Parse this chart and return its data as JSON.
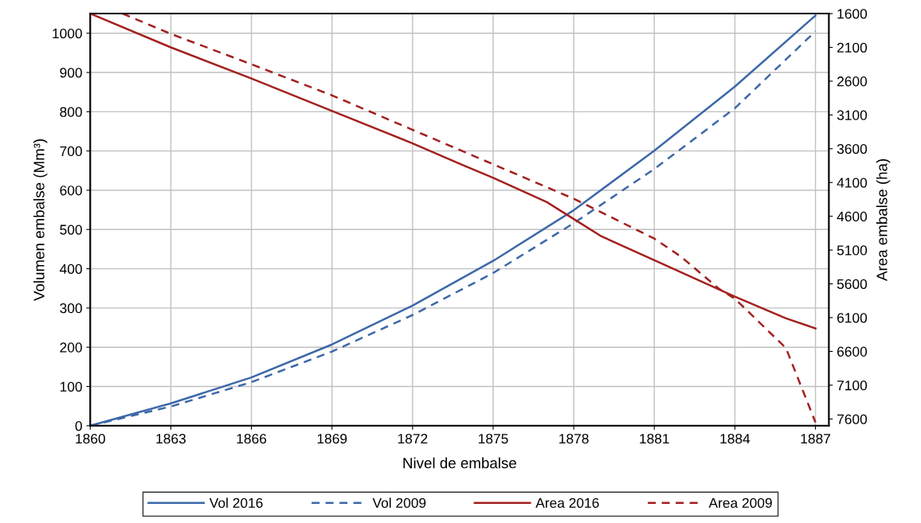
{
  "chart_data": {
    "type": "line",
    "xlabel": "Nivel de embalse",
    "ylabel": "Volumen embalse (Mm³)",
    "y2label": "Area embalse (ha)",
    "xlim": [
      1860,
      1887.5
    ],
    "xticks": [
      1860,
      1863,
      1866,
      1869,
      1872,
      1875,
      1878,
      1881,
      1884,
      1887
    ],
    "ylim": [
      0,
      1050
    ],
    "yticks": [
      0,
      100,
      200,
      300,
      400,
      500,
      600,
      700,
      800,
      900,
      1000
    ],
    "y2lim": [
      7700,
      1600
    ],
    "y2ticks": [
      1600,
      2100,
      2600,
      3100,
      3600,
      4100,
      4600,
      5100,
      5600,
      6100,
      6600,
      7100,
      7600
    ],
    "grid": true,
    "legend": "bottom",
    "series": [
      {
        "name": "Vol 2016",
        "color": "#3d68a8",
        "line_style": "solid",
        "x": [
          1860,
          1863,
          1866,
          1869,
          1872,
          1875,
          1878,
          1881,
          1884,
          1887
        ],
        "values": [
          0,
          57,
          123,
          207,
          306,
          420,
          549,
          701,
          864,
          1045
        ]
      },
      {
        "name": "Vol 2009",
        "color": "#3d68a8",
        "line_style": "dashed",
        "x": [
          1860,
          1863,
          1866,
          1869,
          1872,
          1875,
          1878,
          1881,
          1884,
          1887
        ],
        "values": [
          0,
          49,
          111,
          189,
          282,
          389,
          516,
          654,
          809,
          1005
        ]
      },
      {
        "name": "Area 2016",
        "color": "#a3201f",
        "line_style": "solid",
        "axis": "y2",
        "x": [
          1860,
          1863,
          1866,
          1869,
          1872,
          1873.8,
          1875,
          1877,
          1878,
          1879,
          1881,
          1884,
          1885.9,
          1887
        ],
        "values": [
          1600,
          2100,
          2560,
          3040,
          3520,
          3830,
          4030,
          4390,
          4640,
          4890,
          5250,
          5790,
          6110,
          6260
        ]
      },
      {
        "name": "Area 2009",
        "color": "#a3201f",
        "line_style": "dashed",
        "axis": "y2",
        "x": [
          1861.2,
          1863,
          1866,
          1869,
          1872,
          1875,
          1878,
          1881,
          1882,
          1883.4,
          1884,
          1885.9,
          1887
        ],
        "values": [
          1600,
          1900,
          2350,
          2810,
          3320,
          3830,
          4340,
          4930,
          5200,
          5670,
          5820,
          6550,
          7650
        ]
      }
    ]
  }
}
